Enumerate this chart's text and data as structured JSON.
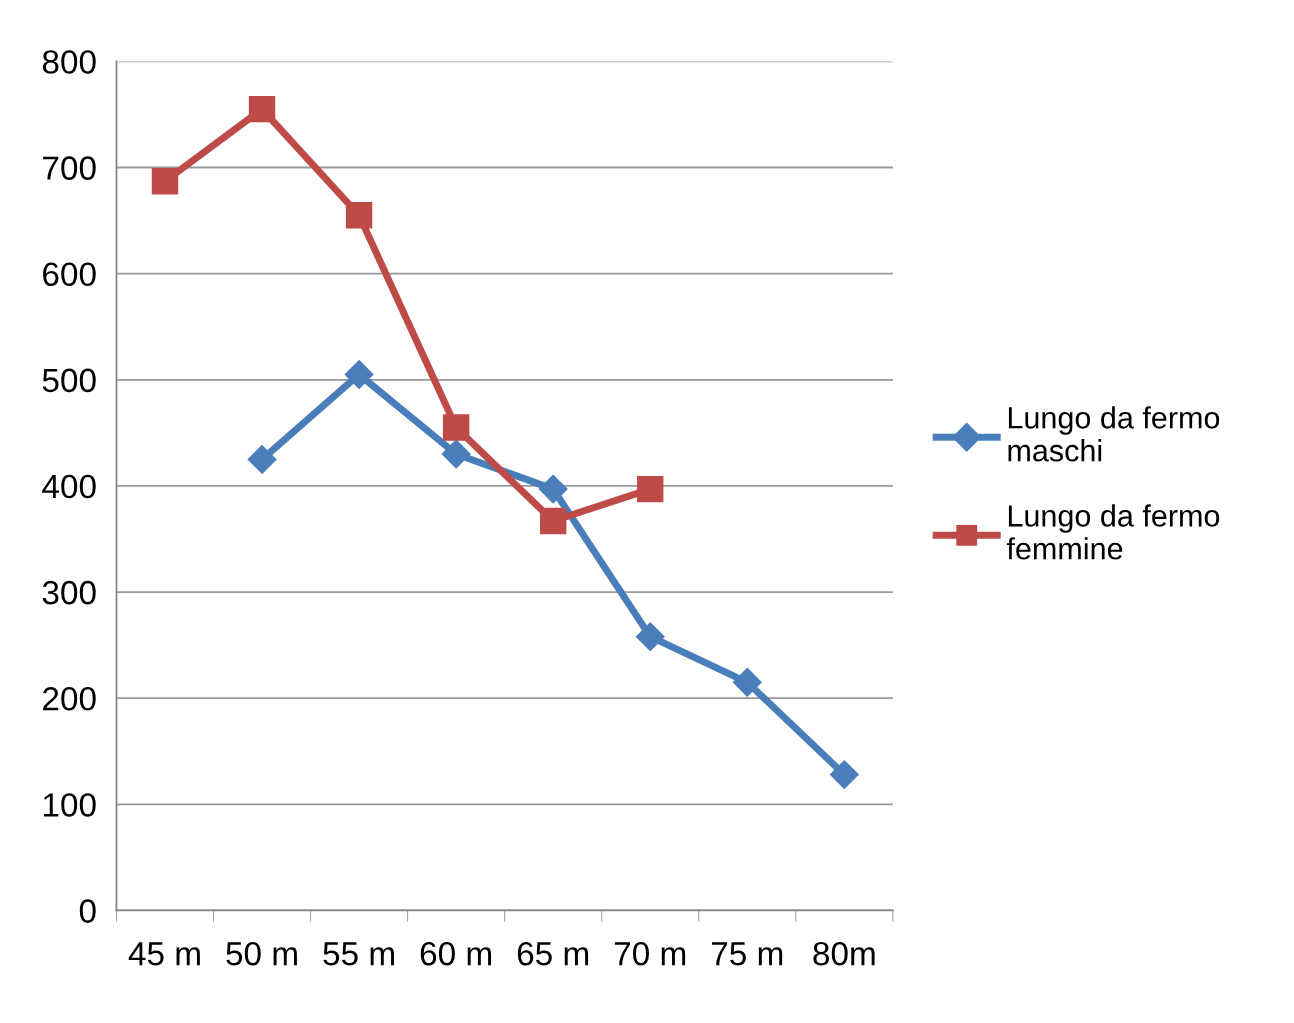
{
  "chart_data": {
    "type": "line",
    "categories": [
      "45 m",
      "50 m",
      "55 m",
      "60 m",
      "65 m",
      "70 m",
      "75 m",
      "80m"
    ],
    "series": [
      {
        "name": "Lungo da fermo maschi",
        "color": "#4a7ebb",
        "marker": "diamond",
        "values": [
          null,
          425,
          505,
          430,
          397,
          258,
          215,
          128
        ]
      },
      {
        "name": "Lungo da fermo femmine",
        "color": "#be4b48",
        "marker": "square",
        "values": [
          687,
          755,
          655,
          455,
          367,
          397,
          null,
          null
        ]
      }
    ],
    "ylim": [
      0,
      800
    ],
    "yticks": [
      0,
      100,
      200,
      300,
      400,
      500,
      600,
      700,
      800
    ],
    "grid": "y",
    "legend": "right",
    "line_style": "solid"
  }
}
